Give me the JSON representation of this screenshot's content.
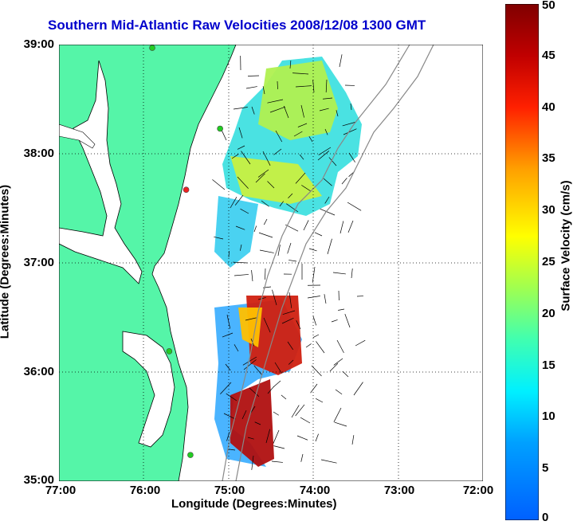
{
  "title": "Southern Mid-Atlantic Raw Velocities 2008/12/08 1300 GMT",
  "xlabel": "Longitude (Degrees:Minutes)",
  "ylabel": "Latitude (Degrees:Minutes)",
  "x_ticks": [
    "77:00",
    "76:00",
    "75:00",
    "74:00",
    "73:00",
    "72:00"
  ],
  "y_ticks": [
    "39:00",
    "38:00",
    "37:00",
    "36:00",
    "35:00"
  ],
  "colorbar": {
    "label": "Surface Velocity (cm/s)",
    "ticks": [
      "0",
      "5",
      "10",
      "15",
      "20",
      "25",
      "30",
      "35",
      "40",
      "45",
      "50"
    ],
    "range": [
      0,
      50
    ]
  },
  "map": {
    "lon_range": [
      -77,
      -72
    ],
    "lat_range": [
      35,
      39
    ],
    "land_color": "#55f5a8",
    "coast_color": "#000000",
    "bathymetry_color": "#888888",
    "grid": "dotted",
    "stations": [
      {
        "lon": -75.9,
        "lat": 38.97,
        "color": "#22cc22"
      },
      {
        "lon": -75.1,
        "lat": 38.23,
        "color": "#22cc22"
      },
      {
        "lon": -75.5,
        "lat": 37.67,
        "color": "#ee2222"
      },
      {
        "lon": -75.7,
        "lat": 36.19,
        "color": "#22cc22"
      },
      {
        "lon": -75.45,
        "lat": 35.24,
        "color": "#22cc22"
      }
    ]
  }
}
